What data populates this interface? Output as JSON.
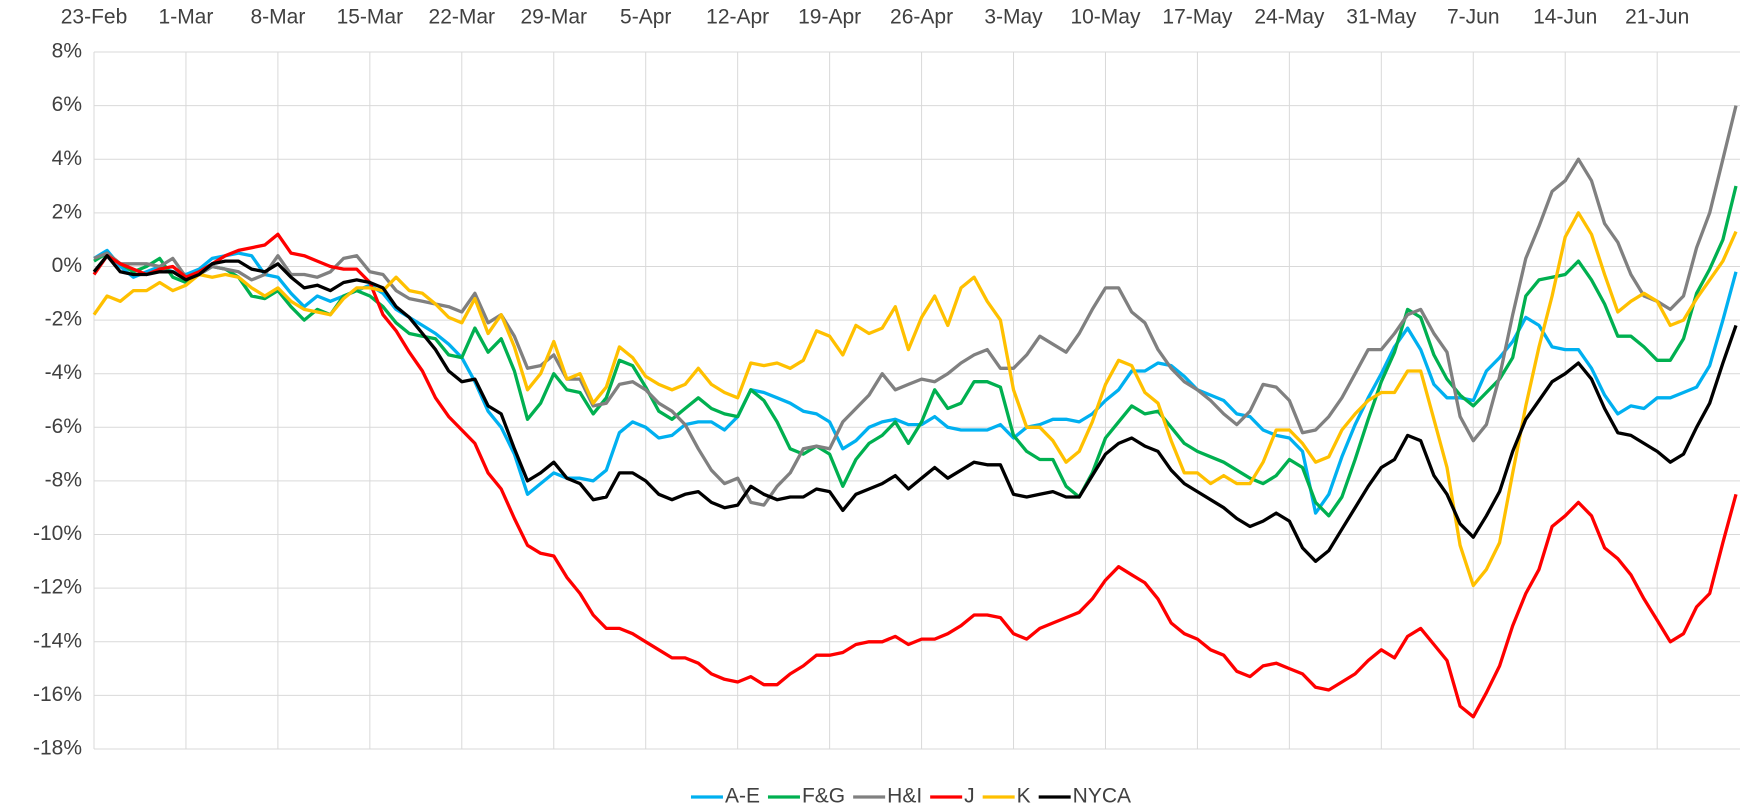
{
  "chart_data": {
    "type": "line",
    "categories": [
      "23-Feb",
      null,
      null,
      null,
      null,
      null,
      null,
      "1-Mar",
      null,
      null,
      null,
      null,
      null,
      null,
      "8-Mar",
      null,
      null,
      null,
      null,
      null,
      null,
      "15-Mar",
      null,
      null,
      null,
      null,
      null,
      null,
      "22-Mar",
      null,
      null,
      null,
      null,
      null,
      null,
      "29-Mar",
      null,
      null,
      null,
      null,
      null,
      null,
      "5-Apr",
      null,
      null,
      null,
      null,
      null,
      null,
      "12-Apr",
      null,
      null,
      null,
      null,
      null,
      null,
      "19-Apr",
      null,
      null,
      null,
      null,
      null,
      null,
      "26-Apr",
      null,
      null,
      null,
      null,
      null,
      null,
      "3-May",
      null,
      null,
      null,
      null,
      null,
      null,
      "10-May",
      null,
      null,
      null,
      null,
      null,
      null,
      "17-May",
      null,
      null,
      null,
      null,
      null,
      null,
      "24-May",
      null,
      null,
      null,
      null,
      null,
      null,
      "31-May",
      null,
      null,
      null,
      null,
      null,
      null,
      "7-Jun",
      null,
      null,
      null,
      null,
      null,
      null,
      "14-Jun",
      null,
      null,
      null,
      null,
      null,
      null,
      "21-Jun",
      null,
      null,
      null,
      null,
      null,
      null
    ],
    "series": [
      {
        "name": "A-E",
        "color": "#00b0f0",
        "values": [
          0.3,
          0.6,
          0.0,
          -0.4,
          -0.2,
          0.0,
          -0.2,
          -0.3,
          -0.1,
          0.3,
          0.4,
          0.5,
          0.4,
          -0.3,
          -0.4,
          -1.0,
          -1.5,
          -1.1,
          -1.3,
          -1.1,
          -0.9,
          -0.7,
          -1.0,
          -1.6,
          -1.9,
          -2.2,
          -2.5,
          -2.9,
          -3.4,
          -4.3,
          -5.4,
          -6.0,
          -7.0,
          -8.5,
          -8.1,
          -7.7,
          -7.9,
          -7.9,
          -8.0,
          -7.6,
          -6.2,
          -5.8,
          -6.0,
          -6.4,
          -6.3,
          -5.9,
          -5.8,
          -5.8,
          -6.1,
          -5.6,
          -4.6,
          -4.7,
          -4.9,
          -5.1,
          -5.4,
          -5.5,
          -5.8,
          -6.8,
          -6.5,
          -6.0,
          -5.8,
          -5.7,
          -5.9,
          -5.9,
          -5.6,
          -6.0,
          -6.1,
          -6.1,
          -6.1,
          -5.9,
          -6.4,
          -6.0,
          -5.9,
          -5.7,
          -5.7,
          -5.8,
          -5.5,
          -5.0,
          -4.6,
          -3.9,
          -3.9,
          -3.6,
          -3.7,
          -4.1,
          -4.6,
          -4.8,
          -5.0,
          -5.5,
          -5.6,
          -6.1,
          -6.3,
          -6.4,
          -6.9,
          -9.2,
          -8.5,
          -7.1,
          -5.9,
          -4.9,
          -4.0,
          -3.0,
          -2.3,
          -3.1,
          -4.4,
          -4.9,
          -4.9,
          -5.0,
          -3.9,
          -3.4,
          -2.8,
          -1.9,
          -2.2,
          -3.0,
          -3.1,
          -3.1,
          -3.8,
          -4.8,
          -5.5,
          -5.2,
          -5.3,
          -4.9,
          -4.9,
          -4.7,
          -4.5,
          -3.7,
          -2.0,
          -0.2
        ]
      },
      {
        "name": "F&G",
        "color": "#00b050",
        "values": [
          0.2,
          0.5,
          0.1,
          -0.2,
          0.0,
          0.3,
          -0.4,
          -0.6,
          -0.3,
          0.0,
          -0.1,
          -0.4,
          -1.1,
          -1.2,
          -0.9,
          -1.5,
          -2.0,
          -1.6,
          -1.8,
          -1.1,
          -0.9,
          -1.1,
          -1.5,
          -2.1,
          -2.5,
          -2.6,
          -2.7,
          -3.3,
          -3.4,
          -2.3,
          -3.2,
          -2.7,
          -3.9,
          -5.7,
          -5.1,
          -4.0,
          -4.6,
          -4.7,
          -5.5,
          -4.9,
          -3.5,
          -3.7,
          -4.5,
          -5.4,
          -5.7,
          -5.3,
          -4.9,
          -5.3,
          -5.5,
          -5.6,
          -4.6,
          -5.0,
          -5.8,
          -6.8,
          -7.0,
          -6.7,
          -7.0,
          -8.2,
          -7.2,
          -6.6,
          -6.3,
          -5.8,
          -6.6,
          -5.8,
          -4.6,
          -5.3,
          -5.1,
          -4.3,
          -4.3,
          -4.5,
          -6.3,
          -6.9,
          -7.2,
          -7.2,
          -8.2,
          -8.6,
          -7.7,
          -6.4,
          -5.8,
          -5.2,
          -5.5,
          -5.4,
          -6.0,
          -6.6,
          -6.9,
          -7.1,
          -7.3,
          -7.6,
          -7.9,
          -8.1,
          -7.8,
          -7.2,
          -7.5,
          -8.8,
          -9.3,
          -8.6,
          -7.2,
          -5.7,
          -4.3,
          -3.2,
          -1.6,
          -1.9,
          -3.3,
          -4.2,
          -4.8,
          -5.2,
          -4.7,
          -4.2,
          -3.4,
          -1.1,
          -0.5,
          -0.4,
          -0.3,
          0.2,
          -0.5,
          -1.4,
          -2.6,
          -2.6,
          -3.0,
          -3.5,
          -3.5,
          -2.7,
          -1.0,
          -0.1,
          1.0,
          3.0
        ]
      },
      {
        "name": "H&I",
        "color": "#808080",
        "values": [
          0.3,
          0.5,
          0.1,
          0.1,
          0.1,
          0.0,
          0.3,
          -0.4,
          -0.3,
          0.0,
          -0.1,
          -0.2,
          -0.5,
          -0.3,
          0.4,
          -0.3,
          -0.3,
          -0.4,
          -0.2,
          0.3,
          0.4,
          -0.2,
          -0.3,
          -0.9,
          -1.2,
          -1.3,
          -1.4,
          -1.5,
          -1.7,
          -1.0,
          -2.1,
          -1.8,
          -2.6,
          -3.8,
          -3.7,
          -3.3,
          -4.2,
          -4.2,
          -5.2,
          -5.1,
          -4.4,
          -4.3,
          -4.6,
          -5.1,
          -5.4,
          -5.9,
          -6.8,
          -7.6,
          -8.1,
          -7.9,
          -8.8,
          -8.9,
          -8.2,
          -7.7,
          -6.8,
          -6.7,
          -6.8,
          -5.8,
          -5.3,
          -4.8,
          -4.0,
          -4.6,
          -4.4,
          -4.2,
          -4.3,
          -4.0,
          -3.6,
          -3.3,
          -3.1,
          -3.8,
          -3.8,
          -3.3,
          -2.6,
          -2.9,
          -3.2,
          -2.5,
          -1.6,
          -0.8,
          -0.8,
          -1.7,
          -2.1,
          -3.1,
          -3.8,
          -4.3,
          -4.6,
          -5.0,
          -5.5,
          -5.9,
          -5.4,
          -4.4,
          -4.5,
          -5.0,
          -6.2,
          -6.1,
          -5.6,
          -4.9,
          -4.0,
          -3.1,
          -3.1,
          -2.5,
          -1.8,
          -1.6,
          -2.5,
          -3.2,
          -5.6,
          -6.5,
          -5.9,
          -4.1,
          -1.8,
          0.3,
          1.5,
          2.8,
          3.2,
          4.0,
          3.2,
          1.6,
          0.9,
          -0.3,
          -1.1,
          -1.3,
          -1.6,
          -1.1,
          0.7,
          2.0,
          4.0,
          6.0
        ]
      },
      {
        "name": "J",
        "color": "#ff0000",
        "values": [
          -0.3,
          0.4,
          0.1,
          -0.1,
          -0.3,
          -0.1,
          0.0,
          -0.4,
          -0.2,
          0.1,
          0.4,
          0.6,
          0.7,
          0.8,
          1.2,
          0.5,
          0.4,
          0.2,
          0.0,
          -0.1,
          -0.1,
          -0.6,
          -1.8,
          -2.4,
          -3.2,
          -3.9,
          -4.9,
          -5.6,
          -6.1,
          -6.6,
          -7.7,
          -8.3,
          -9.4,
          -10.4,
          -10.7,
          -10.8,
          -11.6,
          -12.2,
          -13.0,
          -13.5,
          -13.5,
          -13.7,
          -14.0,
          -14.3,
          -14.6,
          -14.6,
          -14.8,
          -15.2,
          -15.4,
          -15.5,
          -15.3,
          -15.6,
          -15.6,
          -15.2,
          -14.9,
          -14.5,
          -14.5,
          -14.4,
          -14.1,
          -14.0,
          -14.0,
          -13.8,
          -14.1,
          -13.9,
          -13.9,
          -13.7,
          -13.4,
          -13.0,
          -13.0,
          -13.1,
          -13.7,
          -13.9,
          -13.5,
          -13.3,
          -13.1,
          -12.9,
          -12.4,
          -11.7,
          -11.2,
          -11.5,
          -11.8,
          -12.4,
          -13.3,
          -13.7,
          -13.9,
          -14.3,
          -14.5,
          -15.1,
          -15.3,
          -14.9,
          -14.8,
          -15.0,
          -15.2,
          -15.7,
          -15.8,
          -15.5,
          -15.2,
          -14.7,
          -14.3,
          -14.6,
          -13.8,
          -13.5,
          -14.1,
          -14.7,
          -16.4,
          -16.8,
          -15.9,
          -14.9,
          -13.4,
          -12.2,
          -11.3,
          -9.7,
          -9.3,
          -8.8,
          -9.3,
          -10.5,
          -10.9,
          -11.5,
          -12.4,
          -13.2,
          -14.0,
          -13.7,
          -12.7,
          -12.2,
          -10.3,
          -8.5
        ]
      },
      {
        "name": "K",
        "color": "#ffc000",
        "values": [
          -1.8,
          -1.1,
          -1.3,
          -0.9,
          -0.9,
          -0.6,
          -0.9,
          -0.7,
          -0.3,
          -0.4,
          -0.3,
          -0.4,
          -0.8,
          -1.1,
          -0.8,
          -1.3,
          -1.6,
          -1.7,
          -1.8,
          -1.2,
          -0.8,
          -0.8,
          -0.9,
          -0.4,
          -0.9,
          -1.0,
          -1.4,
          -1.9,
          -2.1,
          -1.2,
          -2.5,
          -1.8,
          -3.0,
          -4.6,
          -4.0,
          -2.8,
          -4.2,
          -4.0,
          -5.1,
          -4.5,
          -3.0,
          -3.4,
          -4.1,
          -4.4,
          -4.6,
          -4.4,
          -3.8,
          -4.4,
          -4.7,
          -4.9,
          -3.6,
          -3.7,
          -3.6,
          -3.8,
          -3.5,
          -2.4,
          -2.6,
          -3.3,
          -2.2,
          -2.5,
          -2.3,
          -1.5,
          -3.1,
          -1.9,
          -1.1,
          -2.2,
          -0.8,
          -0.4,
          -1.3,
          -2.0,
          -4.6,
          -6.0,
          -6.0,
          -6.5,
          -7.3,
          -6.9,
          -5.8,
          -4.4,
          -3.5,
          -3.7,
          -4.7,
          -5.1,
          -6.5,
          -7.7,
          -7.7,
          -8.1,
          -7.8,
          -8.1,
          -8.1,
          -7.3,
          -6.1,
          -6.1,
          -6.6,
          -7.3,
          -7.1,
          -6.1,
          -5.5,
          -5.0,
          -4.7,
          -4.7,
          -3.9,
          -3.9,
          -5.7,
          -7.5,
          -10.4,
          -11.9,
          -11.3,
          -10.3,
          -7.7,
          -5.2,
          -3.0,
          -1.1,
          1.1,
          2.0,
          1.2,
          -0.3,
          -1.7,
          -1.3,
          -1.0,
          -1.3,
          -2.2,
          -2.0,
          -1.2,
          -0.5,
          0.2,
          1.3
        ]
      },
      {
        "name": "NYCA",
        "color": "#000000",
        "values": [
          -0.2,
          0.4,
          -0.2,
          -0.3,
          -0.3,
          -0.2,
          -0.2,
          -0.5,
          -0.3,
          0.1,
          0.2,
          0.2,
          -0.1,
          -0.2,
          0.1,
          -0.4,
          -0.8,
          -0.7,
          -0.9,
          -0.6,
          -0.5,
          -0.6,
          -0.8,
          -1.5,
          -1.9,
          -2.5,
          -3.1,
          -3.9,
          -4.3,
          -4.2,
          -5.2,
          -5.5,
          -6.8,
          -8.0,
          -7.7,
          -7.3,
          -7.9,
          -8.1,
          -8.7,
          -8.6,
          -7.7,
          -7.7,
          -8.0,
          -8.5,
          -8.7,
          -8.5,
          -8.4,
          -8.8,
          -9.0,
          -8.9,
          -8.2,
          -8.5,
          -8.7,
          -8.6,
          -8.6,
          -8.3,
          -8.4,
          -9.1,
          -8.5,
          -8.3,
          -8.1,
          -7.8,
          -8.3,
          -7.9,
          -7.5,
          -7.9,
          -7.6,
          -7.3,
          -7.4,
          -7.4,
          -8.5,
          -8.6,
          -8.5,
          -8.4,
          -8.6,
          -8.6,
          -7.8,
          -7.0,
          -6.6,
          -6.4,
          -6.7,
          -6.9,
          -7.6,
          -8.1,
          -8.4,
          -8.7,
          -9.0,
          -9.4,
          -9.7,
          -9.5,
          -9.2,
          -9.5,
          -10.5,
          -11.0,
          -10.6,
          -9.8,
          -9.0,
          -8.2,
          -7.5,
          -7.2,
          -6.3,
          -6.5,
          -7.8,
          -8.5,
          -9.6,
          -10.1,
          -9.3,
          -8.4,
          -6.9,
          -5.7,
          -5.0,
          -4.3,
          -4.0,
          -3.6,
          -4.2,
          -5.3,
          -6.2,
          -6.3,
          -6.6,
          -6.9,
          -7.3,
          -7.0,
          -6.0,
          -5.1,
          -3.6,
          -2.2
        ]
      }
    ],
    "ylim": [
      -18,
      8
    ],
    "yticks": [
      {
        "value": -18,
        "label": "-18%"
      },
      {
        "value": -16,
        "label": "-16%"
      },
      {
        "value": -14,
        "label": "-14%"
      },
      {
        "value": -12,
        "label": "-12%"
      },
      {
        "value": -10,
        "label": "-10%"
      },
      {
        "value": -8,
        "label": "-8%"
      },
      {
        "value": -6,
        "label": "-6%"
      },
      {
        "value": -4,
        "label": "-4%"
      },
      {
        "value": -2,
        "label": "-2%"
      },
      {
        "value": 0,
        "label": "0%"
      },
      {
        "value": 2,
        "label": "2%"
      },
      {
        "value": 4,
        "label": "4%"
      },
      {
        "value": 6,
        "label": "6%"
      },
      {
        "value": 8,
        "label": "8%"
      }
    ],
    "grid": true,
    "legend": "bottom"
  }
}
